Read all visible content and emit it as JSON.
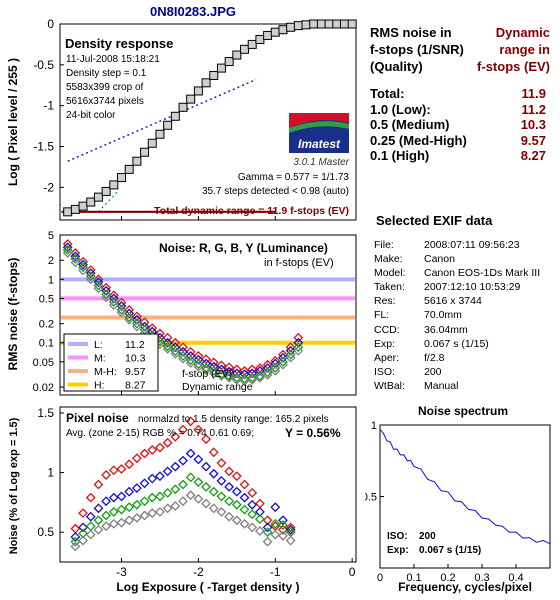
{
  "file_title": "0N8I0283.JPG",
  "rms_header": {
    "left_lines": [
      "RMS noise in",
      "f-stops (1/SNR)",
      "(Quality)"
    ],
    "right_lines": [
      "Dynamic",
      "range in",
      "f-stops (EV)"
    ]
  },
  "rms_table": [
    {
      "label": "Total:",
      "value": "11.9"
    },
    {
      "label": "1.0   (Low):",
      "value": "11.2"
    },
    {
      "label": "0.5   (Medium)",
      "value": "10.3"
    },
    {
      "label": "0.25 (Med-High)",
      "value": "9.57"
    },
    {
      "label": "0.1   (High)",
      "value": "8.27"
    }
  ],
  "exif": {
    "title": "Selected EXIF data",
    "rows": [
      {
        "k": "File:",
        "v": "2008:07:11 09:56:23"
      },
      {
        "k": "Make:",
        "v": "Canon"
      },
      {
        "k": "Model:",
        "v": "Canon EOS-1Ds Mark III"
      },
      {
        "k": "Taken:",
        "v": "2007:12:10 10:53:29"
      },
      {
        "k": "Res:",
        "v": "5616 x 3744"
      },
      {
        "k": "FL:",
        "v": "70.0mm"
      },
      {
        "k": "CCD:",
        "v": "36.04mm"
      },
      {
        "k": "Exp:",
        "v": "0.067 s  (1/15)"
      },
      {
        "k": "Aper:",
        "v": "f/2.8"
      },
      {
        "k": "ISO:",
        "v": "200"
      },
      {
        "k": "WtBal:",
        "v": "Manual"
      }
    ]
  },
  "logo": {
    "text": "Imatest",
    "version": "3.0.1  Master"
  },
  "colors": {
    "red": "#e01010",
    "green": "#10a010",
    "blue": "#1010d0",
    "gray": "#808080",
    "title": "#00008b",
    "dr": "#800000"
  },
  "chart_data": [
    {
      "type": "line",
      "title": "Density response",
      "info_lines": [
        "11-Jul-2008 15:18:21",
        "Density step = 0.1",
        "5583x399 crop of",
        "5616x3744 pixels",
        "24-bit color"
      ],
      "ylabel": "Log ( Pixel level / 255 )",
      "xlim": [
        -3.8,
        0.05
      ],
      "ylim": [
        -2.4,
        0
      ],
      "yticks": [
        "0",
        "-0.5",
        "-1",
        "-1.5",
        "-2"
      ],
      "ytick_values": [
        0,
        -0.5,
        -1,
        -1.5,
        -2
      ],
      "xtick_values": [
        -3,
        -2,
        -1
      ],
      "series": [
        {
          "x": [
            -3.7,
            -3.6,
            -3.5,
            -3.4,
            -3.3,
            -3.2,
            -3.1,
            -3.0,
            -2.9,
            -2.8,
            -2.7,
            -2.6,
            -2.5,
            -2.4,
            -2.3,
            -2.2,
            -2.1,
            -2.0,
            -1.9,
            -1.8,
            -1.7,
            -1.6,
            -1.5,
            -1.4,
            -1.3,
            -1.2,
            -1.1,
            -1.0,
            -0.9,
            -0.8,
            -0.7,
            -0.6,
            -0.5,
            -0.4,
            -0.3,
            -0.2,
            -0.1,
            0.0
          ],
          "y": [
            -2.3,
            -2.27,
            -2.23,
            -2.18,
            -2.12,
            -2.05,
            -1.97,
            -1.88,
            -1.78,
            -1.68,
            -1.57,
            -1.46,
            -1.35,
            -1.24,
            -1.13,
            -1.02,
            -0.92,
            -0.82,
            -0.72,
            -0.63,
            -0.54,
            -0.46,
            -0.38,
            -0.31,
            -0.25,
            -0.19,
            -0.14,
            -0.1,
            -0.07,
            -0.04,
            -0.02,
            -0.01,
            0.0,
            0.0,
            0.0,
            0.0,
            0.0,
            0.0
          ]
        }
      ],
      "fit_line": {
        "x": [
          -3.7,
          -1.25
        ],
        "y": [
          -1.68,
          -0.68
        ]
      },
      "annotations": [
        "Gamma = 0.577 = 1/1.73",
        "35.7 steps detected < 0.98 (auto)"
      ],
      "dr_label": "Total dynamic range = 11.9 f-stops (EV)"
    },
    {
      "type": "scatter",
      "title": "Noise: R, G, B, Y (Luminance)",
      "subtitle": "in f-stops (EV)",
      "ylabel": "RMS noise (f-stops)",
      "yscale": "log",
      "ylim": [
        0.015,
        5
      ],
      "xlim": [
        -3.8,
        0.05
      ],
      "yticks": [
        "5",
        "2",
        "1",
        "0.5",
        "0.2",
        "0.1",
        "0.05",
        "0.02"
      ],
      "ytick_values": [
        5,
        2,
        1,
        0.5,
        0.2,
        0.1,
        0.05,
        0.02
      ],
      "xtick_values": [
        -3,
        -2,
        -1
      ],
      "x": [
        -3.7,
        -3.6,
        -3.5,
        -3.4,
        -3.3,
        -3.2,
        -3.1,
        -3.0,
        -2.9,
        -2.8,
        -2.7,
        -2.6,
        -2.5,
        -2.4,
        -2.3,
        -2.2,
        -2.1,
        -2.0,
        -1.9,
        -1.8,
        -1.7,
        -1.6,
        -1.5,
        -1.4,
        -1.3,
        -1.2,
        -1.1,
        -1.0,
        -0.9,
        -0.8,
        -0.7
      ],
      "series": [
        {
          "name": "R",
          "color": "red",
          "values": [
            3.6,
            2.6,
            1.9,
            1.4,
            1.0,
            0.74,
            0.56,
            0.43,
            0.33,
            0.26,
            0.21,
            0.17,
            0.14,
            0.12,
            0.1,
            0.085,
            0.072,
            0.062,
            0.055,
            0.049,
            0.044,
            0.041,
            0.038,
            0.036,
            0.038,
            0.04,
            0.045,
            0.052,
            0.065,
            0.085,
            0.12
          ]
        },
        {
          "name": "B",
          "color": "blue",
          "values": [
            3.2,
            2.3,
            1.7,
            1.25,
            0.9,
            0.66,
            0.5,
            0.38,
            0.29,
            0.23,
            0.18,
            0.15,
            0.12,
            0.1,
            0.085,
            0.072,
            0.062,
            0.054,
            0.047,
            0.042,
            0.038,
            0.035,
            0.033,
            0.032,
            0.033,
            0.036,
            0.04,
            0.047,
            0.058,
            0.075,
            0.1
          ]
        },
        {
          "name": "G",
          "color": "green",
          "values": [
            2.9,
            2.1,
            1.55,
            1.12,
            0.8,
            0.58,
            0.44,
            0.33,
            0.25,
            0.2,
            0.16,
            0.13,
            0.105,
            0.088,
            0.074,
            0.062,
            0.053,
            0.046,
            0.04,
            0.036,
            0.032,
            0.03,
            0.028,
            0.027,
            0.028,
            0.03,
            0.034,
            0.04,
            0.05,
            0.065,
            0.085
          ]
        },
        {
          "name": "Y",
          "color": "gray",
          "values": [
            2.6,
            1.85,
            1.38,
            1.0,
            0.72,
            0.52,
            0.39,
            0.3,
            0.23,
            0.18,
            0.14,
            0.115,
            0.095,
            0.08,
            0.067,
            0.056,
            0.048,
            0.042,
            0.037,
            0.033,
            0.03,
            0.028,
            0.026,
            0.025,
            0.026,
            0.028,
            0.031,
            0.036,
            0.045,
            0.058,
            0.075
          ]
        }
      ],
      "hlines": [
        {
          "y": 1.0,
          "color": "#b0b0ff"
        },
        {
          "y": 0.5,
          "color": "#ff90ff"
        },
        {
          "y": 0.25,
          "color": "#ffb080"
        },
        {
          "y": 0.1,
          "color": "#ffd000"
        }
      ],
      "legend": {
        "position": "bottom-left",
        "entries": [
          {
            "label": "L:",
            "value": "11.2",
            "color": "#b0b0ff"
          },
          {
            "label": "M:",
            "value": "10.3",
            "color": "#ff90ff"
          },
          {
            "label": "M-H:",
            "value": "9.57",
            "color": "#ffb080"
          },
          {
            "label": "H:",
            "value": "8.27",
            "color": "#ffd000"
          }
        ]
      },
      "annotations": [
        "f-stop (EV)",
        "Dynamic range"
      ]
    },
    {
      "type": "scatter",
      "title": "Pixel noise",
      "subtitle": "normalzd to 1.5 density range: 165.2 pixels",
      "stats_line": "Avg. (zone 2-15) RGB % = 0.74  0.61  0.69;",
      "y_summary": "Y = 0.56%",
      "ylabel": "Noise (% of Log exp = 1.5)",
      "xlabel": "Log Exposure ( -Target density )",
      "xlim": [
        -3.8,
        0.05
      ],
      "ylim": [
        0.25,
        1.55
      ],
      "yticks": [
        "1.5",
        "1",
        "0.5"
      ],
      "ytick_values": [
        1.5,
        1.0,
        0.5
      ],
      "xticks": [
        "-3",
        "-2",
        "-1",
        "0"
      ],
      "xtick_values": [
        -3,
        -2,
        -1,
        0
      ],
      "x": [
        -3.6,
        -3.5,
        -3.4,
        -3.3,
        -3.2,
        -3.1,
        -3.0,
        -2.9,
        -2.8,
        -2.7,
        -2.6,
        -2.5,
        -2.4,
        -2.3,
        -2.2,
        -2.1,
        -2.0,
        -1.9,
        -1.8,
        -1.7,
        -1.6,
        -1.5,
        -1.4,
        -1.3,
        -1.2,
        -1.1,
        -1.0,
        -0.9,
        -0.8
      ],
      "series": [
        {
          "name": "R",
          "color": "red",
          "values": [
            0.53,
            0.66,
            0.79,
            0.9,
            0.98,
            1.02,
            1.03,
            1.07,
            1.12,
            1.16,
            1.19,
            1.21,
            1.25,
            1.3,
            1.36,
            1.43,
            1.36,
            1.28,
            1.17,
            1.08,
            1.01,
            0.97,
            0.9,
            0.83,
            0.74,
            0.6,
            0.55,
            0.52,
            0.54
          ]
        },
        {
          "name": "B",
          "color": "blue",
          "values": [
            0.46,
            0.54,
            0.63,
            0.7,
            0.76,
            0.79,
            0.8,
            0.84,
            0.87,
            0.91,
            0.95,
            0.97,
            1.01,
            1.05,
            1.1,
            1.16,
            1.11,
            1.05,
            0.99,
            0.93,
            0.88,
            0.84,
            0.79,
            0.73,
            0.67,
            0.54,
            0.71,
            0.6,
            0.52
          ]
        },
        {
          "name": "G",
          "color": "green",
          "values": [
            0.42,
            0.49,
            0.55,
            0.6,
            0.64,
            0.67,
            0.69,
            0.71,
            0.73,
            0.76,
            0.79,
            0.8,
            0.83,
            0.86,
            0.9,
            0.96,
            0.92,
            0.88,
            0.84,
            0.8,
            0.76,
            0.73,
            0.69,
            0.65,
            0.61,
            0.5,
            0.57,
            0.56,
            0.5
          ]
        },
        {
          "name": "Y",
          "color": "gray",
          "values": [
            0.38,
            0.43,
            0.48,
            0.52,
            0.55,
            0.57,
            0.58,
            0.6,
            0.62,
            0.64,
            0.66,
            0.67,
            0.7,
            0.72,
            0.76,
            0.81,
            0.78,
            0.74,
            0.7,
            0.67,
            0.63,
            0.6,
            0.57,
            0.54,
            0.51,
            0.42,
            0.48,
            0.47,
            0.43
          ]
        }
      ]
    },
    {
      "type": "line",
      "title": "Noise spectrum",
      "xlabel": "Frequency, cycles/pixel",
      "xlim": [
        0,
        0.5
      ],
      "ylim": [
        0,
        1
      ],
      "xticks": [
        "0",
        "0.1",
        "0.2",
        "0.3",
        "0.4"
      ],
      "xtick_values": [
        0,
        0.1,
        0.2,
        0.3,
        0.4
      ],
      "yticks": [
        "1",
        "0.5"
      ],
      "ytick_values": [
        1,
        0.5
      ],
      "x": [
        0,
        0.01,
        0.02,
        0.03,
        0.04,
        0.05,
        0.06,
        0.07,
        0.08,
        0.09,
        0.1,
        0.12,
        0.14,
        0.16,
        0.18,
        0.2,
        0.22,
        0.24,
        0.26,
        0.28,
        0.3,
        0.32,
        0.34,
        0.36,
        0.38,
        0.4,
        0.42,
        0.44,
        0.46,
        0.48,
        0.5
      ],
      "values": [
        0.97,
        0.93,
        0.9,
        0.87,
        0.84,
        0.82,
        0.8,
        0.78,
        0.76,
        0.74,
        0.72,
        0.68,
        0.63,
        0.59,
        0.55,
        0.52,
        0.48,
        0.45,
        0.42,
        0.39,
        0.36,
        0.33,
        0.31,
        0.28,
        0.26,
        0.24,
        0.22,
        0.2,
        0.19,
        0.18,
        0.18
      ],
      "info": [
        {
          "k": "ISO:",
          "v": "200"
        },
        {
          "k": "Exp:",
          "v": "0.067 s  (1/15)"
        }
      ]
    }
  ]
}
